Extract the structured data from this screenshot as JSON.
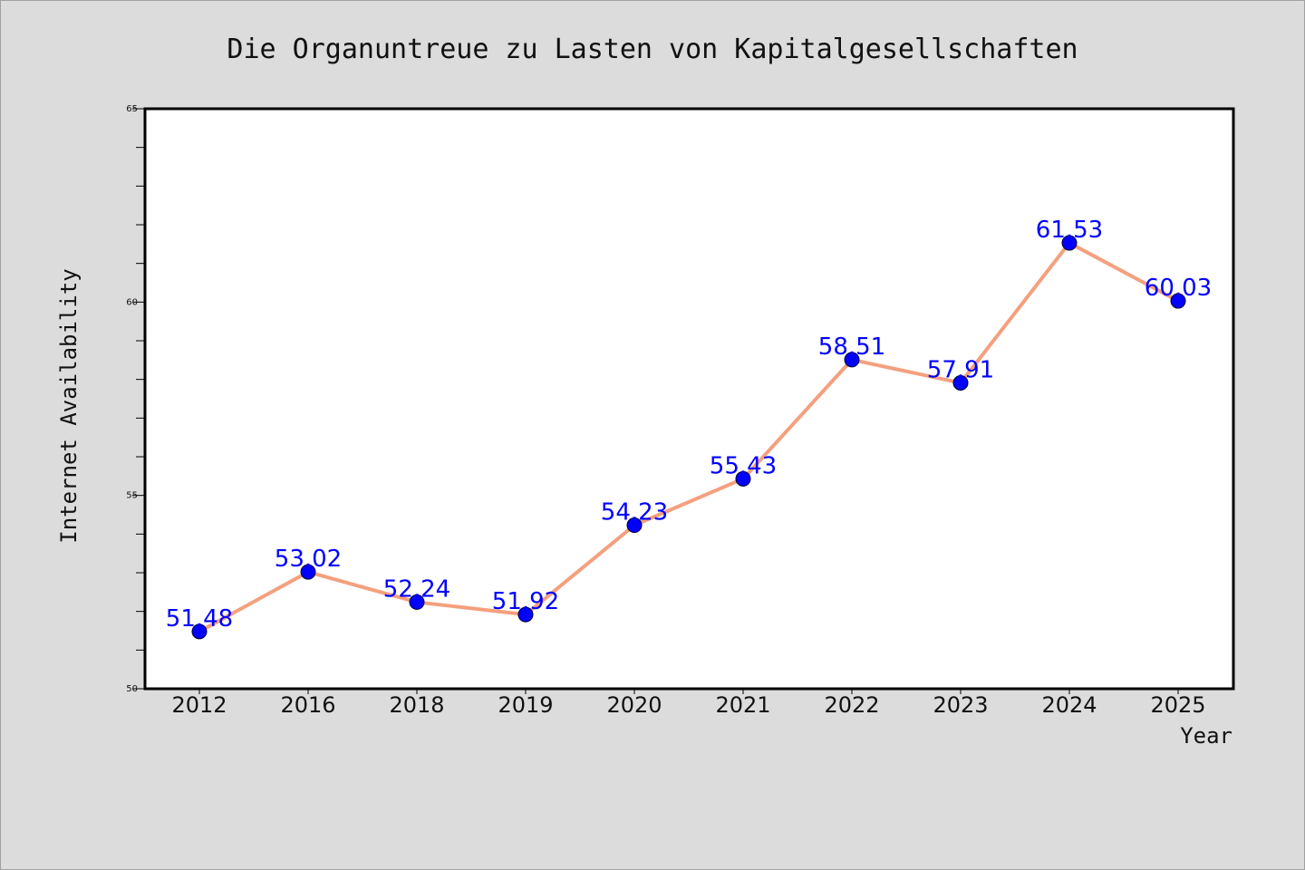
{
  "chart_data": {
    "type": "line",
    "title": "Die Organuntreue zu Lasten von Kapitalgesellschaften",
    "xlabel": "Year",
    "ylabel": "Internet Availability",
    "categories": [
      "2012",
      "2016",
      "2018",
      "2019",
      "2020",
      "2021",
      "2022",
      "2023",
      "2024",
      "2025"
    ],
    "values": [
      51.48,
      53.02,
      52.24,
      51.92,
      54.23,
      55.43,
      58.51,
      57.91,
      61.53,
      60.03
    ],
    "data_labels": [
      "51.48",
      "53.02",
      "52.24",
      "51.92",
      "54.23",
      "55.43",
      "58.51",
      "57.91",
      "61.53",
      "60.03"
    ],
    "ylim": [
      50,
      65
    ],
    "y_major_ticks": [
      50,
      55,
      60,
      65
    ],
    "y_minor_step": 1,
    "grid": false,
    "legend": "none",
    "colors": {
      "line": "#f4a07e",
      "marker": "#0000ff",
      "data_label": "#0000ff",
      "background": "#dcdcdc",
      "plot_background": "#ffffff"
    }
  }
}
